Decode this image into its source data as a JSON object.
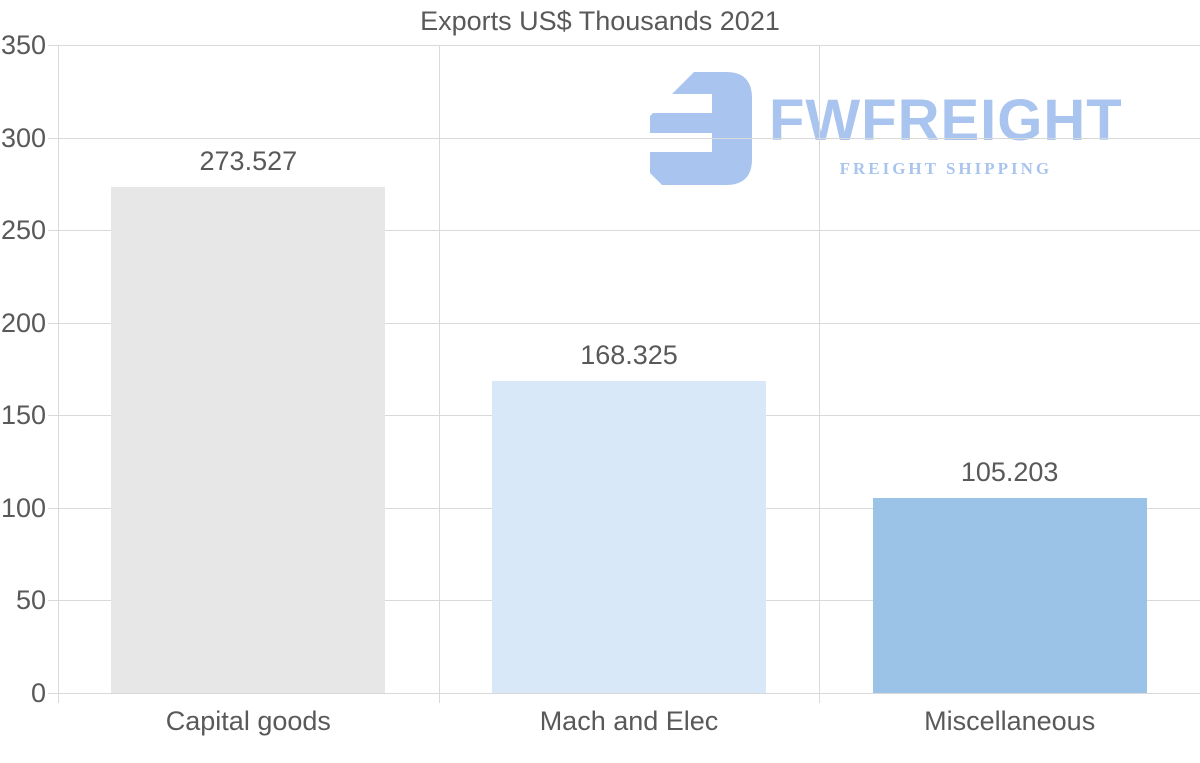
{
  "title": "Exports US$ Thousands 2021",
  "watermark": {
    "brand": "FWFREIGHT",
    "tagline": "FREIGHT SHIPPING",
    "color": "#a9c4ee"
  },
  "chart_data": {
    "type": "bar",
    "title": "Exports US$ Thousands 2021",
    "categories": [
      "Capital goods",
      "Mach and Elec",
      "Miscellaneous"
    ],
    "values": [
      273.527,
      168.325,
      105.203
    ],
    "value_labels": [
      "273.527",
      "168.325",
      "105.203"
    ],
    "bar_colors": [
      "#e7e7e7",
      "#d9e8f8",
      "#9bc3e7"
    ],
    "xlabel": "",
    "ylabel": "",
    "ylim": [
      0,
      350
    ],
    "yticks": [
      0,
      50,
      100,
      150,
      200,
      250,
      300,
      350
    ],
    "grid": "on",
    "legend": "none"
  },
  "colors": {
    "text": "#595959",
    "grid": "#d9d9d9",
    "background": "#ffffff"
  }
}
